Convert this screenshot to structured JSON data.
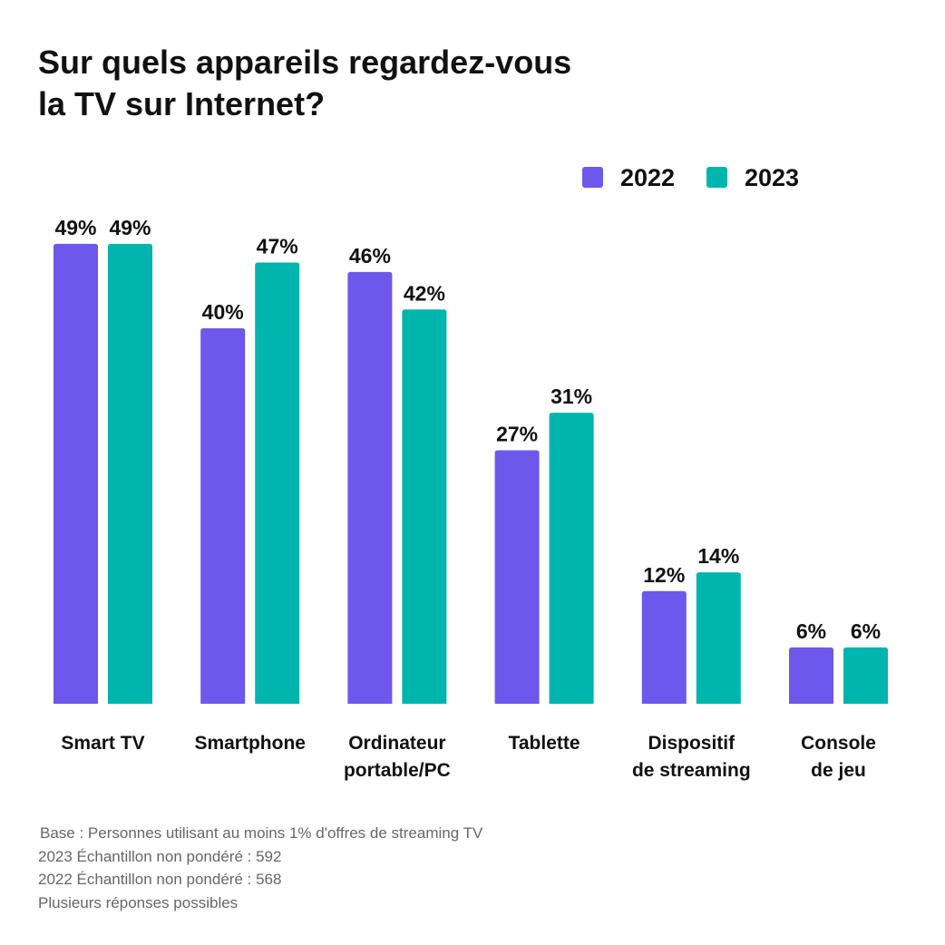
{
  "title_lines": [
    "Sur quels appareils regardez-vous",
    "la TV sur Internet?"
  ],
  "colors": {
    "series_2022": "#6E57EB",
    "series_2023": "#00B5AD"
  },
  "chart_data": {
    "type": "bar",
    "title": "Sur quels appareils regardez-vous la TV sur Internet?",
    "categories": [
      [
        "Smart TV"
      ],
      [
        "Smartphone"
      ],
      [
        "Ordinateur",
        "portable/PC"
      ],
      [
        "Tablette"
      ],
      [
        "Dispositif",
        "de streaming"
      ],
      [
        "Console",
        "de jeu"
      ]
    ],
    "series": [
      {
        "name": "2022",
        "color": "#6E57EB",
        "values": [
          49,
          40,
          46,
          27,
          12,
          6
        ]
      },
      {
        "name": "2023",
        "color": "#00B5AD",
        "values": [
          49,
          47,
          42,
          31,
          14,
          6
        ]
      }
    ],
    "value_suffix": "%",
    "ylim": [
      0,
      50
    ],
    "legend": "top-right",
    "grid": false
  },
  "footnotes": [
    "Base : Personnes utilisant au moins 1% d'offres de streaming TV",
    "2023 Échantillon non pondéré : 592",
    "2022 Échantillon non pondéré : 568",
    "Plusieurs réponses possibles"
  ]
}
